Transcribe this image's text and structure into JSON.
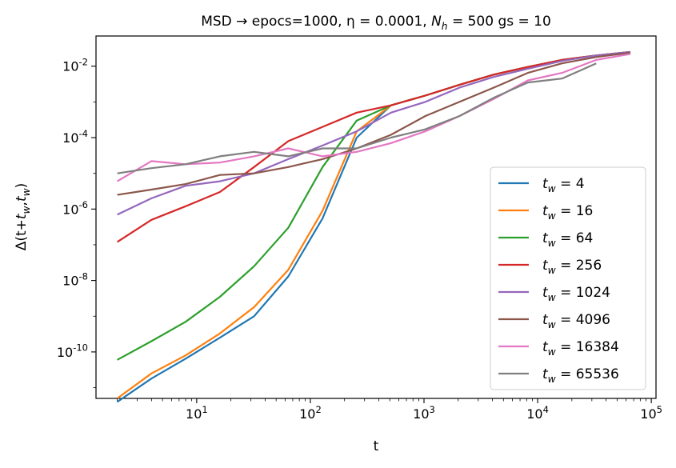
{
  "chart_data": {
    "type": "line",
    "title": "MSD → epocs=1000, η = 0.0001, N_h = 500 gs = 10",
    "xlabel": "t",
    "ylabel": "Δ(t+t_w,t_w)",
    "xscale": "log",
    "yscale": "log",
    "xlim": [
      1.3,
      110000
    ],
    "ylim": [
      5e-12,
      0.07
    ],
    "x_ticks": [
      "10^1",
      "10^2",
      "10^3",
      "10^4",
      "10^5"
    ],
    "y_ticks": [
      "10^-10",
      "10^-8",
      "10^-6",
      "10^-4",
      "10^-2"
    ],
    "legend_position": "lower right",
    "grid": false,
    "x": [
      2,
      4,
      8,
      16,
      32,
      64,
      128,
      256,
      512,
      1024,
      2048,
      4096,
      8192,
      16384,
      32768,
      65536
    ],
    "series": [
      {
        "name": "t_w = 4",
        "color": "#1f77b4",
        "values": [
          4e-12,
          1.8e-11,
          6.5e-11,
          2.5e-10,
          1e-09,
          1.3e-08,
          5.5e-07,
          0.0001,
          0.0008,
          0.0015,
          0.003,
          0.0058,
          0.0095,
          0.015,
          0.02,
          0.025
        ]
      },
      {
        "name": "t_w = 16",
        "color": "#ff7f0e",
        "values": [
          5e-12,
          2.5e-11,
          8e-11,
          3.3e-10,
          1.8e-09,
          2e-08,
          9e-07,
          0.00015,
          0.0008,
          0.0015,
          0.003,
          0.0058,
          0.0095,
          0.015,
          0.02,
          0.025
        ]
      },
      {
        "name": "t_w = 64",
        "color": "#2ca02c",
        "values": [
          6e-11,
          2e-10,
          7e-10,
          3.5e-09,
          2.5e-08,
          3e-07,
          1.5e-05,
          0.0003,
          0.0008,
          0.0015,
          0.003,
          0.0058,
          0.0095,
          0.015,
          0.02,
          0.025
        ]
      },
      {
        "name": "t_w = 256",
        "color": "#d62728",
        "values": [
          1.2e-07,
          5e-07,
          1.2e-06,
          3e-06,
          1.5e-05,
          8e-05,
          0.0002,
          0.0005,
          0.0008,
          0.0015,
          0.003,
          0.0058,
          0.0095,
          0.015,
          0.02,
          0.025
        ]
      },
      {
        "name": "t_w = 1024",
        "color": "#9467bd",
        "values": [
          7e-07,
          2e-06,
          4.5e-06,
          6e-06,
          1e-05,
          2.5e-05,
          6e-05,
          0.00015,
          0.0005,
          0.001,
          0.0025,
          0.005,
          0.0085,
          0.014,
          0.02,
          0.025
        ]
      },
      {
        "name": "t_w = 4096",
        "color": "#8c564b",
        "values": [
          2.5e-06,
          3.5e-06,
          5e-06,
          9e-06,
          1e-05,
          1.5e-05,
          2.5e-05,
          5e-05,
          0.00012,
          0.0004,
          0.001,
          0.0025,
          0.0065,
          0.012,
          0.018,
          0.024
        ]
      },
      {
        "name": "t_w = 16384",
        "color": "#e377c2",
        "values": [
          6e-06,
          2.2e-05,
          1.8e-05,
          2e-05,
          3e-05,
          5e-05,
          3e-05,
          4e-05,
          7e-05,
          0.00015,
          0.0004,
          0.0012,
          0.004,
          0.0065,
          0.015,
          0.022
        ]
      },
      {
        "name": "t_w = 65536",
        "color": "#7f7f7f",
        "values": [
          1e-05,
          1.4e-05,
          1.8e-05,
          3e-05,
          4e-05,
          3e-05,
          5e-05,
          5e-05,
          0.0001,
          0.00017,
          0.0004,
          0.0013,
          0.0035,
          0.0045,
          0.012,
          null
        ]
      }
    ]
  }
}
